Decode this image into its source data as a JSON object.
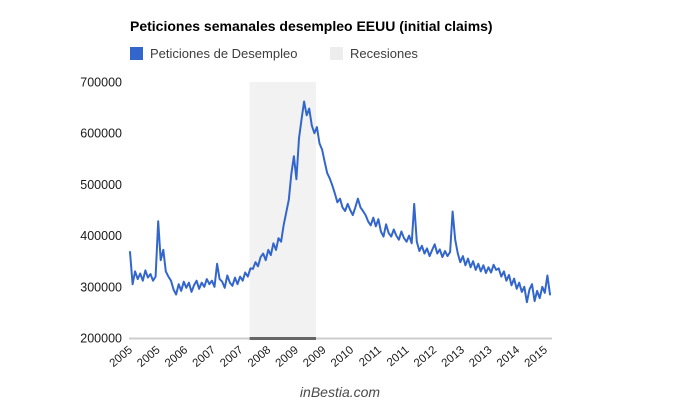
{
  "chart": {
    "title": "Peticiones semanales desempleo EEUU (initial claims)",
    "legend": [
      {
        "label": "Peticiones de Desempleo",
        "color": "#3366cc"
      },
      {
        "label": "Recesiones",
        "color": "#ededed"
      }
    ],
    "watermark": "inBestia.com"
  },
  "colors": {
    "axis_line": "#cccccc",
    "axis_text": "#1a1a1a",
    "line_series": "#3366cc",
    "band_fill": "#f2f2f2",
    "band_baseline": "#666666"
  },
  "chart_data": {
    "type": "line",
    "title": "Peticiones semanales desempleo EEUU (initial claims)",
    "xlabel": "",
    "ylabel": "",
    "grid": false,
    "legend_position": "top",
    "x_range": [
      2005.0,
      2015.3
    ],
    "y_range": [
      200000,
      700000
    ],
    "y_ticks": [
      200000,
      300000,
      400000,
      500000,
      600000,
      700000
    ],
    "x_tick_labels": [
      "2005",
      "2005",
      "2006",
      "2007",
      "2007",
      "2008",
      "2009",
      "2009",
      "2010",
      "2011",
      "2011",
      "2012",
      "2013",
      "2013",
      "2014",
      "2015"
    ],
    "bands": [
      {
        "name": "Recesiones",
        "x_start": 2007.92,
        "x_end": 2009.54
      }
    ],
    "series": [
      {
        "name": "Peticiones de Desempleo",
        "x_start": 2005.0,
        "x_step_years": 0.0625,
        "values": [
          368000,
          305000,
          330000,
          315000,
          326000,
          312000,
          332000,
          318000,
          325000,
          312000,
          320000,
          428000,
          352000,
          372000,
          330000,
          320000,
          312000,
          295000,
          285000,
          305000,
          292000,
          310000,
          298000,
          308000,
          290000,
          303000,
          312000,
          296000,
          308000,
          300000,
          315000,
          305000,
          312000,
          300000,
          345000,
          315000,
          310000,
          298000,
          322000,
          308000,
          302000,
          318000,
          305000,
          320000,
          312000,
          328000,
          320000,
          336000,
          335000,
          348000,
          340000,
          358000,
          365000,
          352000,
          372000,
          362000,
          385000,
          372000,
          395000,
          388000,
          420000,
          445000,
          470000,
          520000,
          555000,
          510000,
          590000,
          628000,
          662000,
          635000,
          648000,
          615000,
          600000,
          612000,
          580000,
          568000,
          545000,
          522000,
          512000,
          498000,
          482000,
          465000,
          472000,
          455000,
          448000,
          462000,
          450000,
          440000,
          455000,
          472000,
          455000,
          448000,
          440000,
          428000,
          420000,
          435000,
          418000,
          432000,
          408000,
          398000,
          422000,
          405000,
          398000,
          412000,
          400000,
          392000,
          408000,
          395000,
          388000,
          400000,
          385000,
          462000,
          388000,
          370000,
          380000,
          365000,
          375000,
          360000,
          372000,
          383000,
          365000,
          373000,
          358000,
          370000,
          360000,
          368000,
          447000,
          392000,
          365000,
          348000,
          360000,
          342000,
          355000,
          338000,
          350000,
          333000,
          345000,
          330000,
          342000,
          327000,
          338000,
          328000,
          343000,
          333000,
          336000,
          320000,
          330000,
          312000,
          323000,
          303000,
          316000,
          296000,
          308000,
          290000,
          300000,
          270000,
          295000,
          305000,
          272000,
          292000,
          278000,
          300000,
          288000,
          322000,
          285000
        ]
      }
    ]
  }
}
